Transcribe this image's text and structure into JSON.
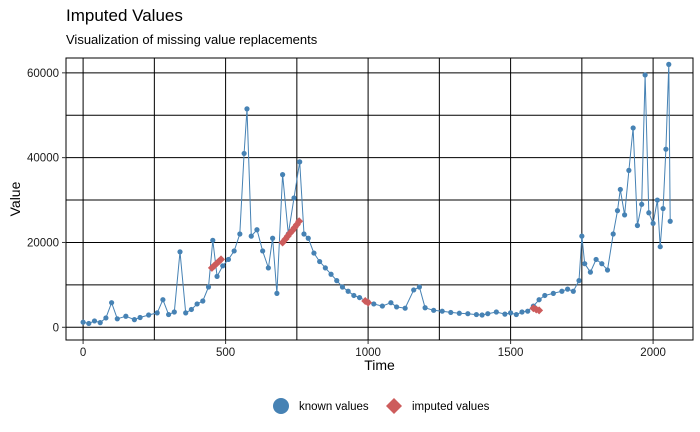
{
  "chart_data": {
    "type": "line",
    "title": "Imputed Values",
    "subtitle": "Visualization of missing value replacements",
    "xlabel": "Time",
    "ylabel": "Value",
    "xlim": [
      -60,
      2140
    ],
    "ylim": [
      -3000,
      63500
    ],
    "xticks": [
      0,
      500,
      1000,
      1500,
      2000
    ],
    "xtick_labels": [
      "0",
      "500",
      "1000",
      "1500",
      "2000"
    ],
    "yticks": [
      0,
      20000,
      40000,
      60000
    ],
    "ytick_labels": [
      "0",
      "20000",
      "40000",
      "60000"
    ],
    "grid": true,
    "legend_position": "bottom",
    "colors": {
      "known": "#4682b4",
      "imputed": "#cd5c5c",
      "grid": "#000000"
    },
    "series": [
      {
        "name": "known values",
        "marker": "circle",
        "values": [
          [
            0,
            1200
          ],
          [
            20,
            900
          ],
          [
            40,
            1500
          ],
          [
            60,
            1100
          ],
          [
            80,
            2200
          ],
          [
            100,
            5800
          ],
          [
            120,
            2000
          ],
          [
            150,
            2600
          ],
          [
            180,
            1800
          ],
          [
            200,
            2300
          ],
          [
            230,
            2900
          ],
          [
            260,
            3400
          ],
          [
            280,
            6500
          ],
          [
            300,
            3000
          ],
          [
            320,
            3600
          ],
          [
            340,
            17800
          ],
          [
            360,
            3400
          ],
          [
            380,
            4200
          ],
          [
            400,
            5500
          ],
          [
            420,
            6200
          ],
          [
            440,
            9500
          ],
          [
            455,
            20500
          ],
          [
            470,
            12000
          ],
          [
            490,
            14500
          ],
          [
            510,
            16000
          ],
          [
            530,
            18000
          ],
          [
            550,
            22000
          ],
          [
            565,
            41000
          ],
          [
            575,
            51500
          ],
          [
            590,
            21500
          ],
          [
            610,
            23000
          ],
          [
            630,
            18000
          ],
          [
            650,
            14000
          ],
          [
            665,
            21000
          ],
          [
            680,
            8000
          ],
          [
            700,
            36000
          ],
          [
            720,
            22000
          ],
          [
            740,
            30500
          ],
          [
            760,
            39000
          ],
          [
            775,
            22000
          ],
          [
            790,
            21000
          ],
          [
            810,
            17500
          ],
          [
            830,
            15500
          ],
          [
            850,
            14000
          ],
          [
            870,
            12500
          ],
          [
            890,
            11000
          ],
          [
            910,
            9500
          ],
          [
            930,
            8500
          ],
          [
            950,
            7500
          ],
          [
            970,
            7000
          ],
          [
            1000,
            6000
          ],
          [
            1020,
            5500
          ],
          [
            1050,
            5000
          ],
          [
            1080,
            5800
          ],
          [
            1100,
            4800
          ],
          [
            1130,
            4500
          ],
          [
            1160,
            8800
          ],
          [
            1180,
            9500
          ],
          [
            1200,
            4600
          ],
          [
            1230,
            4000
          ],
          [
            1260,
            3800
          ],
          [
            1290,
            3500
          ],
          [
            1320,
            3300
          ],
          [
            1350,
            3200
          ],
          [
            1380,
            3000
          ],
          [
            1400,
            2900
          ],
          [
            1420,
            3200
          ],
          [
            1450,
            3600
          ],
          [
            1480,
            3100
          ],
          [
            1500,
            3400
          ],
          [
            1520,
            3000
          ],
          [
            1540,
            3600
          ],
          [
            1560,
            3800
          ],
          [
            1580,
            5000
          ],
          [
            1600,
            6500
          ],
          [
            1620,
            7500
          ],
          [
            1650,
            8000
          ],
          [
            1680,
            8500
          ],
          [
            1700,
            9000
          ],
          [
            1720,
            8500
          ],
          [
            1740,
            11000
          ],
          [
            1750,
            21500
          ],
          [
            1760,
            15000
          ],
          [
            1780,
            13000
          ],
          [
            1800,
            16000
          ],
          [
            1820,
            15000
          ],
          [
            1840,
            13500
          ],
          [
            1860,
            22000
          ],
          [
            1875,
            27500
          ],
          [
            1885,
            32500
          ],
          [
            1900,
            26500
          ],
          [
            1915,
            37000
          ],
          [
            1930,
            47000
          ],
          [
            1945,
            24000
          ],
          [
            1960,
            29000
          ],
          [
            1972,
            59500
          ],
          [
            1985,
            27000
          ],
          [
            2000,
            24500
          ],
          [
            2015,
            30000
          ],
          [
            2025,
            19000
          ],
          [
            2035,
            28000
          ],
          [
            2045,
            42000
          ],
          [
            2055,
            62000
          ],
          [
            2060,
            25000
          ]
        ]
      },
      {
        "name": "imputed values",
        "marker": "diamond",
        "values": [
          [
            452,
            14000
          ],
          [
            460,
            14500
          ],
          [
            468,
            15000
          ],
          [
            476,
            15500
          ],
          [
            484,
            16000
          ],
          [
            700,
            20000
          ],
          [
            710,
            20800
          ],
          [
            718,
            21500
          ],
          [
            726,
            22200
          ],
          [
            734,
            22800
          ],
          [
            742,
            23500
          ],
          [
            750,
            24200
          ],
          [
            758,
            25000
          ],
          [
            990,
            6200
          ],
          [
            1000,
            5800
          ],
          [
            1580,
            4500
          ],
          [
            1590,
            4200
          ],
          [
            1600,
            4000
          ]
        ]
      }
    ]
  }
}
